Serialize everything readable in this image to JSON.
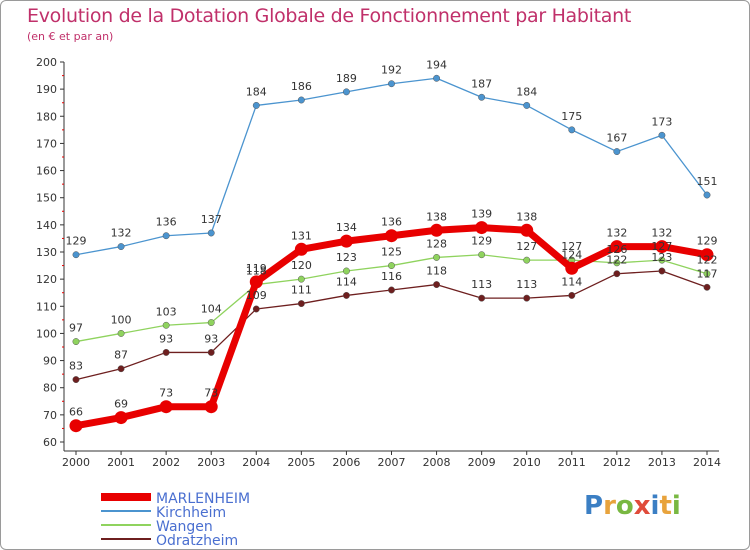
{
  "title": "Evolution de la Dotation Globale de Fonctionnement par Habitant",
  "subtitle": "(en € et par an)",
  "logo": {
    "text": "Proxiti",
    "colors": [
      "#3b7fc4",
      "#e8a33c",
      "#79b842",
      "#e04b3a",
      "#3b7fc4",
      "#e8a33c",
      "#79b842"
    ]
  },
  "chart_data": {
    "type": "line",
    "title": "Evolution de la Dotation Globale de Fonctionnement par Habitant",
    "ylabel": "(en € et par an)",
    "xlabel": "",
    "ylim": [
      60,
      200
    ],
    "yticks": [
      "60",
      "70",
      "80",
      "90",
      "100",
      "110",
      "120",
      "130",
      "140",
      "150",
      "160",
      "170",
      "180",
      "190",
      "200"
    ],
    "categories": [
      "2000",
      "2001",
      "2002",
      "2003",
      "2004",
      "2005",
      "2006",
      "2007",
      "2008",
      "2009",
      "2010",
      "2011",
      "2012",
      "2013",
      "2014"
    ],
    "grid": false,
    "legend": "bottom-left",
    "series": [
      {
        "name": "MARLENHEIM",
        "color": "#e80000",
        "values": [
          66,
          69,
          73,
          73,
          119,
          131,
          134,
          136,
          138,
          139,
          138,
          124,
          132,
          132,
          129
        ],
        "labels": [
          "66",
          "69",
          "73",
          "73",
          "119",
          "131",
          "134",
          "136",
          "138",
          "139",
          "138",
          "124",
          "132",
          "132",
          "129"
        ]
      },
      {
        "name": "Kirchheim",
        "color": "#4b94cf",
        "values": [
          129,
          132,
          136,
          137,
          184,
          186,
          189,
          192,
          194,
          187,
          184,
          175,
          167,
          173,
          151
        ],
        "labels": [
          "129",
          "132",
          "136",
          "137",
          "184",
          "186",
          "189",
          "192",
          "194",
          "187",
          "184",
          "175",
          "167",
          "173",
          "151"
        ]
      },
      {
        "name": "Wangen",
        "color": "#8fd35e",
        "values": [
          97,
          100,
          103,
          104,
          118,
          120,
          123,
          125,
          128,
          129,
          127,
          127,
          126,
          127,
          122
        ],
        "labels": [
          "97",
          "100",
          "103",
          "104",
          "118",
          "120",
          "123",
          "125",
          "128",
          "129",
          "127",
          "127",
          "126",
          "127",
          "122"
        ]
      },
      {
        "name": "Odratzheim",
        "color": "#6e1f1f",
        "values": [
          83,
          87,
          93,
          93,
          109,
          111,
          114,
          116,
          118,
          113,
          113,
          114,
          122,
          123,
          117
        ],
        "labels": [
          "83",
          "87",
          "93",
          "93",
          "109",
          "111",
          "114",
          "116",
          "118",
          "113",
          "113",
          "114",
          "122",
          "123",
          "117"
        ]
      }
    ]
  }
}
